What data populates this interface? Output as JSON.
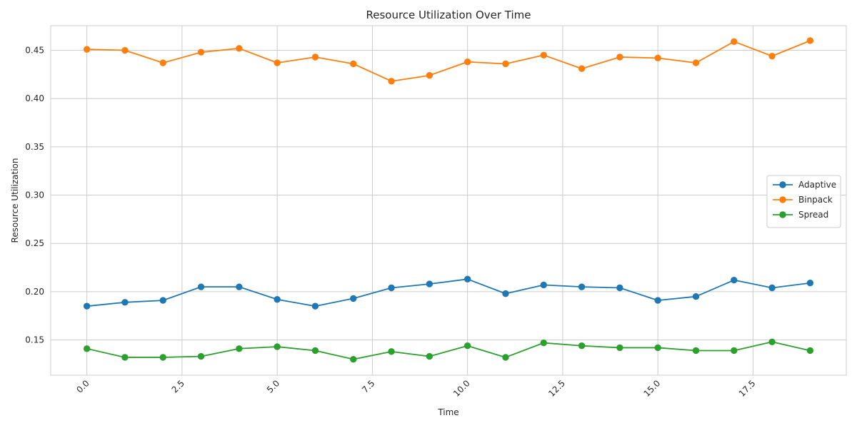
{
  "chart_data": {
    "type": "line",
    "title": "Resource Utilization Over Time",
    "xlabel": "Time",
    "ylabel": "Resource Utilization",
    "xlim": [
      -0.95,
      19.95
    ],
    "ylim": [
      0.1135,
      0.4755
    ],
    "xticks": [
      0.0,
      2.5,
      5.0,
      7.5,
      10.0,
      12.5,
      15.0,
      17.5
    ],
    "xtick_labels": [
      "0.0",
      "2.5",
      "5.0",
      "7.5",
      "10.0",
      "12.5",
      "15.0",
      "17.5"
    ],
    "yticks": [
      0.15,
      0.2,
      0.25,
      0.3,
      0.35,
      0.4,
      0.45
    ],
    "ytick_labels": [
      "0.15",
      "0.20",
      "0.25",
      "0.30",
      "0.35",
      "0.40",
      "0.45"
    ],
    "grid": true,
    "legend_position": "center-right",
    "x": [
      0,
      1,
      2,
      3,
      4,
      5,
      6,
      7,
      8,
      9,
      10,
      11,
      12,
      13,
      14,
      15,
      16,
      17,
      18,
      19
    ],
    "series": [
      {
        "name": "Adaptive",
        "color": "#1f77b4",
        "values": [
          0.185,
          0.189,
          0.191,
          0.205,
          0.205,
          0.192,
          0.185,
          0.193,
          0.204,
          0.208,
          0.213,
          0.198,
          0.207,
          0.205,
          0.204,
          0.191,
          0.195,
          0.212,
          0.204,
          0.209
        ]
      },
      {
        "name": "Binpack",
        "color": "#ff7f0e",
        "values": [
          0.451,
          0.45,
          0.437,
          0.448,
          0.452,
          0.437,
          0.443,
          0.436,
          0.418,
          0.424,
          0.438,
          0.436,
          0.445,
          0.431,
          0.443,
          0.442,
          0.437,
          0.459,
          0.444,
          0.46
        ]
      },
      {
        "name": "Spread",
        "color": "#2ca02c",
        "values": [
          0.141,
          0.132,
          0.132,
          0.133,
          0.141,
          0.143,
          0.139,
          0.13,
          0.138,
          0.133,
          0.144,
          0.132,
          0.147,
          0.144,
          0.142,
          0.142,
          0.139,
          0.139,
          0.148,
          0.139
        ]
      }
    ]
  }
}
